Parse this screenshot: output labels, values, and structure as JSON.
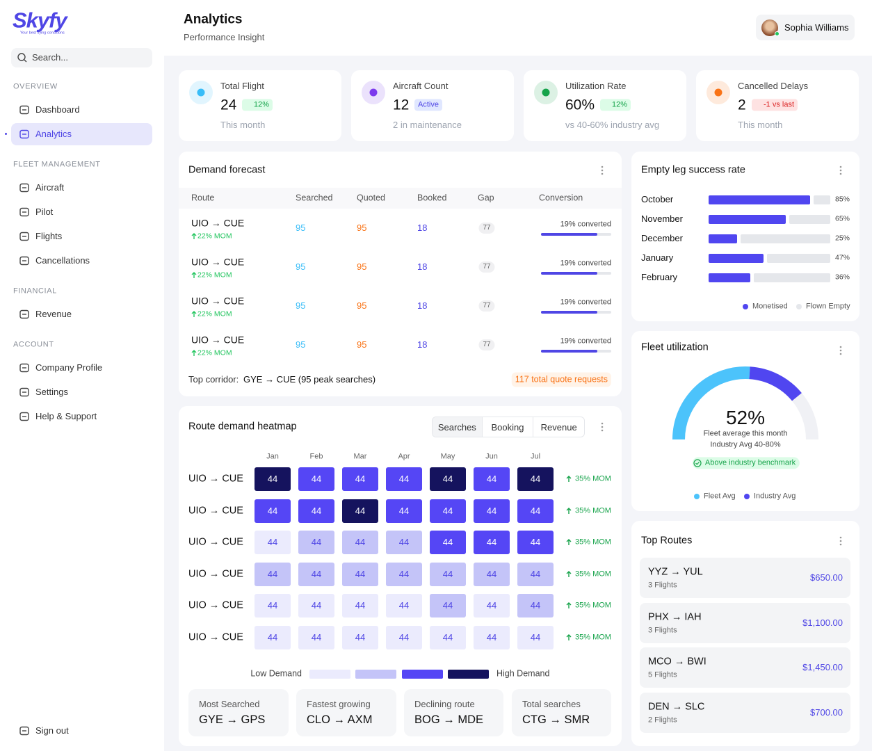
{
  "sidebar": {
    "brand": "Skyfy",
    "tagline": "Your best flying conditions",
    "search_placeholder": "Search...",
    "sections": [
      {
        "title": "OVERVIEW",
        "items": [
          {
            "label": "Dashboard"
          },
          {
            "label": "Analytics",
            "active": true
          }
        ]
      },
      {
        "title": "FLEET MANAGEMENT",
        "items": [
          {
            "label": "Aircraft"
          },
          {
            "label": "Pilot"
          },
          {
            "label": "Flights"
          },
          {
            "label": "Cancellations"
          }
        ]
      },
      {
        "title": "FINANCIAL",
        "items": [
          {
            "label": "Revenue"
          }
        ]
      },
      {
        "title": "ACCOUNT",
        "items": [
          {
            "label": "Company Profile"
          },
          {
            "label": "Settings"
          },
          {
            "label": "Help & Support"
          }
        ]
      }
    ],
    "sign_out": "Sign out"
  },
  "header": {
    "title": "Analytics",
    "subtitle": "Performance Insight",
    "user_name": "Sophia Williams"
  },
  "kpis": [
    {
      "label": "Total Flight",
      "value": 24,
      "badge": "12%",
      "trend": "up",
      "note": "This month",
      "accent": "#38bdf8"
    },
    {
      "label": "Aircraft Count",
      "value": 12,
      "badge": "Active",
      "note": "2 in maintenance",
      "accent": "#7c3aed"
    },
    {
      "label": "Utilization Rate",
      "value": "60%",
      "badge": "12%",
      "trend": "up",
      "note": "vs 40-60% industry avg",
      "accent": "#16a34a"
    },
    {
      "label": "Cancelled Delays",
      "value": 2,
      "badge": "-1 vs last",
      "trend": "down",
      "note": "This month",
      "accent": "#f97316"
    }
  ],
  "demand_forecast": {
    "title": "Demand forecast",
    "columns": [
      "Route",
      "Searched",
      "Quoted",
      "Booked",
      "Gap",
      "Conversion"
    ],
    "rows": [
      {
        "route": "UIO → CUE",
        "change": "22% MOM",
        "searched": 95,
        "quoted": 95,
        "booked": 18,
        "gap": 77,
        "conversion_label": "19% converted",
        "progress": 80
      },
      {
        "route": "UIO → CUE",
        "change": "22% MOM",
        "searched": 95,
        "quoted": 95,
        "booked": 18,
        "gap": 77,
        "conversion_label": "19% converted",
        "progress": 80
      },
      {
        "route": "UIO → CUE",
        "change": "22% MOM",
        "searched": 95,
        "quoted": 95,
        "booked": 18,
        "gap": 77,
        "conversion_label": "19% converted",
        "progress": 80
      },
      {
        "route": "UIO → CUE",
        "change": "22% MOM",
        "searched": 95,
        "quoted": 95,
        "booked": 18,
        "gap": 77,
        "conversion_label": "19% converted",
        "progress": 80
      }
    ],
    "footer_label": "Top corridor:",
    "footer_value": "GYE → CUE (95 peak searches)",
    "footer_badge": "117 total quote requests"
  },
  "heatmap": {
    "title": "Route demand heatmap",
    "tabs": [
      "Searches",
      "Booking",
      "Revenue"
    ],
    "active_tab": 0,
    "months": [
      "Jan",
      "Feb",
      "Mar",
      "Apr",
      "May",
      "Jun",
      "Jul"
    ],
    "rows": [
      {
        "route": "UIO → CUE",
        "values": [
          44,
          44,
          44,
          44,
          44,
          44,
          44
        ],
        "levels": [
          4,
          3,
          3,
          3,
          4,
          3,
          4
        ],
        "change": "35% MOM"
      },
      {
        "route": "UIO → CUE",
        "values": [
          44,
          44,
          44,
          44,
          44,
          44,
          44
        ],
        "levels": [
          3,
          3,
          4,
          3,
          3,
          3,
          3
        ],
        "change": "35% MOM"
      },
      {
        "route": "UIO → CUE",
        "values": [
          44,
          44,
          44,
          44,
          44,
          44,
          44
        ],
        "levels": [
          1,
          2,
          2,
          2,
          3,
          3,
          3
        ],
        "change": "35% MOM"
      },
      {
        "route": "UIO → CUE",
        "values": [
          44,
          44,
          44,
          44,
          44,
          44,
          44
        ],
        "levels": [
          2,
          2,
          2,
          2,
          2,
          2,
          2
        ],
        "change": "35% MOM"
      },
      {
        "route": "UIO → CUE",
        "values": [
          44,
          44,
          44,
          44,
          44,
          44,
          44
        ],
        "levels": [
          1,
          1,
          1,
          1,
          2,
          1,
          2
        ],
        "change": "35% MOM"
      },
      {
        "route": "UIO → CUE",
        "values": [
          44,
          44,
          44,
          44,
          44,
          44,
          44
        ],
        "levels": [
          1,
          1,
          1,
          1,
          1,
          1,
          1
        ],
        "change": "35% MOM"
      }
    ],
    "legend_low": "Low Demand",
    "legend_high": "High Demand",
    "colors": [
      "#ebebfd",
      "#c4c4f8",
      "#5546f5",
      "#15135e"
    ],
    "stats": [
      {
        "label": "Most Searched",
        "value": "GYE → GPS"
      },
      {
        "label": "Fastest growing",
        "value": "CLO → AXM"
      },
      {
        "label": "Declining route",
        "value": "BOG → MDE"
      },
      {
        "label": "Total searches",
        "value": "CTG → SMR"
      }
    ]
  },
  "empty_leg": {
    "type": "bar",
    "title": "Empty leg success rate",
    "categories": [
      "October",
      "November",
      "December",
      "January",
      "February"
    ],
    "series": [
      {
        "name": "Monetised",
        "color": "#5046f0",
        "values": [
          85,
          65,
          25,
          47,
          36
        ],
        "value_labels": [
          "85%",
          "65%",
          "25%",
          "47%",
          "36%"
        ]
      },
      {
        "name": "Flown Empty",
        "color": "#e5e7eb",
        "values": [
          15,
          35,
          75,
          53,
          64
        ]
      }
    ],
    "xlim": [
      0,
      100
    ]
  },
  "fleet_utilization": {
    "type": "gauge",
    "title": "Fleet utilization",
    "value": 52,
    "value_label": "52%",
    "industry_avg": 78,
    "lim": [
      0,
      100
    ],
    "caption": "Fleet average this month",
    "industry_note": "Industry Avg 40-80%",
    "badge": "Above industry benchmark",
    "legend": [
      {
        "name": "Fleet Avg",
        "color": "#4cc3fb"
      },
      {
        "name": "Industry Avg",
        "color": "#5046f0"
      }
    ]
  },
  "top_routes": {
    "title": "Top Routes",
    "items": [
      {
        "route": "YYZ → YUL",
        "flights": "3 Flights",
        "price": "$650.00"
      },
      {
        "route": "PHX → IAH",
        "flights": "3 Flights",
        "price": "$1,100.00"
      },
      {
        "route": "MCO → BWI",
        "flights": "5 Flights",
        "price": "$1,450.00"
      },
      {
        "route": "DEN → SLC",
        "flights": "2 Flights",
        "price": "$700.00"
      }
    ]
  }
}
